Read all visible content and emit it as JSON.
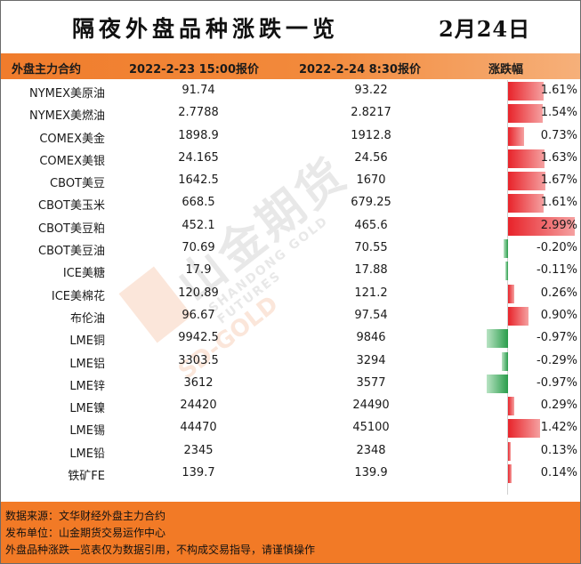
{
  "title": "隔夜外盘品种涨跌一览",
  "date": "2月24日",
  "header": {
    "col_contract": "外盘主力合约",
    "col_price1": "2022-2-23 15:00报价",
    "col_price2": "2022-2-24 8:30报价",
    "col_change": "涨跌幅"
  },
  "rows": [
    {
      "name": "NYMEX美原油",
      "p1": "91.74",
      "p2": "93.22",
      "pct": "1.61%",
      "value": 1.61
    },
    {
      "name": "NYMEX美燃油",
      "p1": "2.7788",
      "p2": "2.8217",
      "pct": "1.54%",
      "value": 1.54
    },
    {
      "name": "COMEX美金",
      "p1": "1898.9",
      "p2": "1912.8",
      "pct": "0.73%",
      "value": 0.73
    },
    {
      "name": "COMEX美银",
      "p1": "24.165",
      "p2": "24.56",
      "pct": "1.63%",
      "value": 1.63
    },
    {
      "name": "CBOT美豆",
      "p1": "1642.5",
      "p2": "1670",
      "pct": "1.67%",
      "value": 1.67
    },
    {
      "name": "CBOT美玉米",
      "p1": "668.5",
      "p2": "679.25",
      "pct": "1.61%",
      "value": 1.61
    },
    {
      "name": "CBOT美豆粕",
      "p1": "452.1",
      "p2": "465.6",
      "pct": "2.99%",
      "value": 2.99
    },
    {
      "name": "CBOT美豆油",
      "p1": "70.69",
      "p2": "70.55",
      "pct": "-0.20%",
      "value": -0.2
    },
    {
      "name": "ICE美糖",
      "p1": "17.9",
      "p2": "17.88",
      "pct": "-0.11%",
      "value": -0.11
    },
    {
      "name": "ICE美棉花",
      "p1": "120.89",
      "p2": "121.2",
      "pct": "0.26%",
      "value": 0.26
    },
    {
      "name": "布伦油",
      "p1": "96.67",
      "p2": "97.54",
      "pct": "0.90%",
      "value": 0.9
    },
    {
      "name": "LME铜",
      "p1": "9942.5",
      "p2": "9846",
      "pct": "-0.97%",
      "value": -0.97
    },
    {
      "name": "LME铝",
      "p1": "3303.5",
      "p2": "3294",
      "pct": "-0.29%",
      "value": -0.29
    },
    {
      "name": "LME锌",
      "p1": "3612",
      "p2": "3577",
      "pct": "-0.97%",
      "value": -0.97
    },
    {
      "name": "LME镍",
      "p1": "24420",
      "p2": "24490",
      "pct": "0.29%",
      "value": 0.29
    },
    {
      "name": "LME锡",
      "p1": "44470",
      "p2": "45100",
      "pct": "1.42%",
      "value": 1.42
    },
    {
      "name": "LME铅",
      "p1": "2345",
      "p2": "2348",
      "pct": "0.13%",
      "value": 0.13
    },
    {
      "name": "铁矿FE",
      "p1": "139.7",
      "p2": "139.9",
      "pct": "0.14%",
      "value": 0.14
    }
  ],
  "watermark": {
    "cn": "山金期货",
    "en": "SHANDONG GOLD FUTURES",
    "gold": "SD-GOLD"
  },
  "footer": {
    "source": "数据来源：文华财经外盘主力合约",
    "publisher": "发布单位：山金期货交易运作中心",
    "disclaimer": "外盘品种涨跌一览表仅为数据引用，不构成交易指导，请谨慎操作"
  },
  "colors": {
    "header_orange": "#f07c2c",
    "positive_red": "#e8232a",
    "negative_green": "#2a9d4b",
    "footer_orange": "#f27a26"
  }
}
